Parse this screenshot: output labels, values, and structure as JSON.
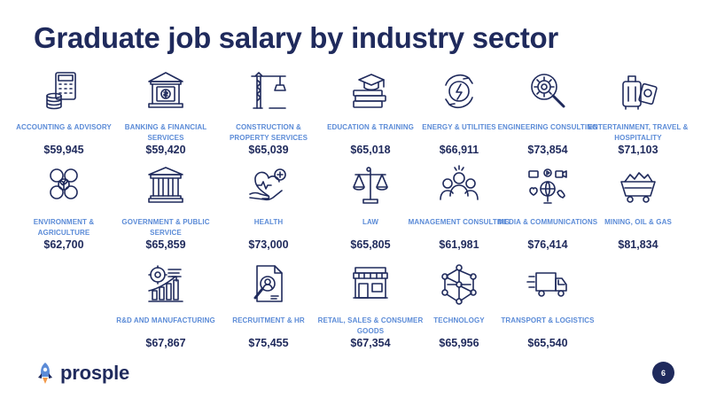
{
  "title": "Graduate job salary by industry sector",
  "sectors": [
    {
      "label": "ACCOUNTING & ADVISORY",
      "salary": "$59,945",
      "icon": "calculator-coins-icon"
    },
    {
      "label": "BANKING & FINANCIAL SERVICES",
      "salary": "$59,420",
      "icon": "bank-dollar-icon"
    },
    {
      "label": "CONSTRUCTION & PROPERTY SERVICES",
      "salary": "$65,039",
      "icon": "crane-icon"
    },
    {
      "label": "EDUCATION & TRAINING",
      "salary": "$65,018",
      "icon": "books-graduation-cap-icon"
    },
    {
      "label": "ENERGY & UTILITIES",
      "salary": "$66,911",
      "icon": "renewable-energy-icon"
    },
    {
      "label": "ENGINEERING CONSULTING",
      "salary": "$73,854",
      "icon": "gear-magnifier-icon"
    },
    {
      "label": "ENTERTAINMENT, TRAVEL & HOSPITALITY",
      "salary": "$71,103",
      "icon": "luggage-passport-icon"
    },
    {
      "label": "ENVIRONMENT & AGRICULTURE",
      "salary": "$62,700",
      "icon": "gears-plant-icon"
    },
    {
      "label": "GOVERNMENT & PUBLIC SERVICE",
      "salary": "$65,859",
      "icon": "government-building-icon"
    },
    {
      "label": "HEALTH",
      "salary": "$73,000",
      "icon": "hand-heart-icon"
    },
    {
      "label": "LAW",
      "salary": "$65,805",
      "icon": "scales-of-justice-icon"
    },
    {
      "label": "MANAGEMENT CONSULTING",
      "salary": "$61,981",
      "icon": "team-people-icon"
    },
    {
      "label": "MEDIA & COMMUNICATIONS",
      "salary": "$76,414",
      "icon": "media-globe-icon"
    },
    {
      "label": "MINING, OIL & GAS",
      "salary": "$81,834",
      "icon": "mine-cart-icon"
    },
    {
      "label": "R&D AND MANUFACTURING",
      "salary": "$67,867",
      "icon": "gear-growth-chart-icon"
    },
    {
      "label": "RECRUITMENT & HR",
      "salary": "$75,455",
      "icon": "resume-search-icon"
    },
    {
      "label": "RETAIL, SALES & CONSUMER GOODS",
      "salary": "$67,354",
      "icon": "storefront-icon"
    },
    {
      "label": "TECHNOLOGY",
      "salary": "$65,956",
      "icon": "network-nodes-icon"
    },
    {
      "label": "TRANSPORT & LOGISTICS",
      "salary": "$65,540",
      "icon": "delivery-truck-icon"
    }
  ],
  "logo": {
    "text": "prosple"
  },
  "page_number": "6",
  "colors": {
    "navy": "#1f2a5c",
    "label_blue": "#5b8bd7",
    "rocket_orange": "#f2994a",
    "rocket_blue": "#5b8bd7"
  }
}
